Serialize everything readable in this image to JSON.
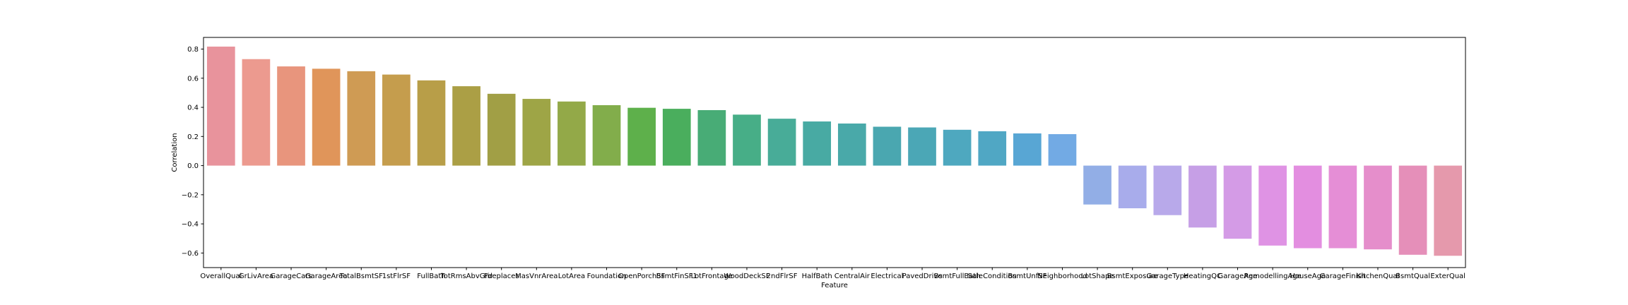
{
  "chart_data": {
    "type": "bar",
    "title": "",
    "xlabel": "Feature",
    "ylabel": "Correlation",
    "ylim": [
      -0.7,
      0.88
    ],
    "yticks": [
      -0.6,
      -0.4,
      -0.2,
      0.0,
      0.2,
      0.4,
      0.6,
      0.8
    ],
    "ytick_labels": [
      "−0.6",
      "−0.4",
      "−0.2",
      "0.0",
      "0.2",
      "0.4",
      "0.6",
      "0.8"
    ],
    "grid": false,
    "categories": [
      "OverallQual",
      "GrLivArea",
      "GarageCars",
      "GarageArea",
      "TotalBsmtSF",
      "1stFlrSF",
      "FullBath",
      "TotRmsAbvGrd",
      "Fireplaces",
      "MasVnrArea",
      "LotArea",
      "Foundation",
      "OpenPorchSF",
      "BsmtFinSF1",
      "LotFrontage",
      "WoodDeckSF",
      "2ndFlrSF",
      "HalfBath",
      "CentralAir",
      "Electrical",
      "PavedDrive",
      "BsmtFullBath",
      "SaleCondition",
      "BsmtUnfSF",
      "Neighborhood",
      "LotShape",
      "BsmtExposure",
      "GarageType",
      "HeatingQC",
      "GarageAge",
      "RemodellingAge",
      "HouseAge",
      "GarageFinish",
      "KitchenQual",
      "BsmtQual",
      "ExterQual"
    ],
    "values": [
      0.817,
      0.731,
      0.681,
      0.665,
      0.648,
      0.625,
      0.585,
      0.545,
      0.493,
      0.458,
      0.44,
      0.415,
      0.397,
      0.39,
      0.381,
      0.35,
      0.322,
      0.303,
      0.289,
      0.267,
      0.262,
      0.246,
      0.236,
      0.221,
      0.216,
      -0.267,
      -0.293,
      -0.34,
      -0.425,
      -0.502,
      -0.549,
      -0.567,
      -0.567,
      -0.575,
      -0.612,
      -0.619
    ],
    "colors": [
      "#e8939c",
      "#ec9a8f",
      "#e8957d",
      "#e0955a",
      "#cf9b54",
      "#c59d4d",
      "#b89e48",
      "#ab9f45",
      "#a19f45",
      "#9ea546",
      "#93a948",
      "#82ad4b",
      "#5eb04b",
      "#4aae5d",
      "#48ac76",
      "#47ae87",
      "#48ac98",
      "#48aaa3",
      "#49a9a9",
      "#4aa7b0",
      "#4ba7b6",
      "#4ea8bf",
      "#50a7c4",
      "#58a6d4",
      "#72aae4",
      "#92aee6",
      "#a8aceb",
      "#b8a9ea",
      "#c69fe6",
      "#d49be6",
      "#df93e4",
      "#e38ee0",
      "#e58ed6",
      "#e58ecb",
      "#e58fb9",
      "#e599ac"
    ]
  }
}
